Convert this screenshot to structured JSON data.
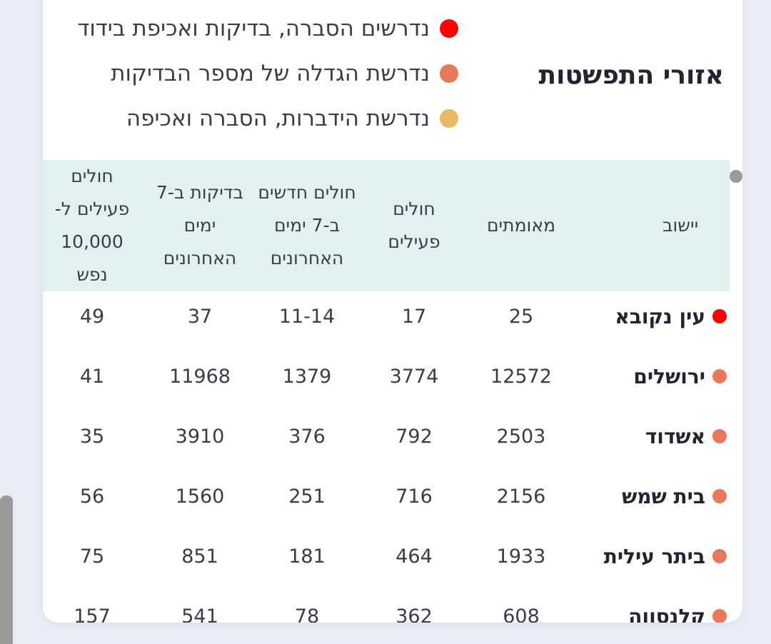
{
  "title": "אזורי התפשטות",
  "legend": [
    {
      "label": "נדרשים הסברה, בדיקות ואכיפת בידוד",
      "color": "#ff0000"
    },
    {
      "label": "נדרשת הגדלה של מספר הבדיקות",
      "color": "#e8785a"
    },
    {
      "label": "נדרשת הידברות, הסברה ואכיפה",
      "color": "#e8b865"
    }
  ],
  "columns": {
    "town": "יישוב",
    "confirmed": "מאומתים",
    "active": "חולים פעילים",
    "new7": "חולים חדשים ב-7 ימים האחרונים",
    "tests7": "בדיקות ב-7 ימים האחרונים",
    "per10k": "חולים פעילים ל- 10,000 נפש"
  },
  "rows": [
    {
      "town": "עין נקובא",
      "confirmed": "25",
      "active": "17",
      "new7": "11-14",
      "tests7": "37",
      "per10k": "49",
      "color": "#ff0000"
    },
    {
      "town": "ירושלים",
      "confirmed": "12572",
      "active": "3774",
      "new7": "1379",
      "tests7": "11968",
      "per10k": "41",
      "color": "#e8785a"
    },
    {
      "town": "אשדוד",
      "confirmed": "2503",
      "active": "792",
      "new7": "376",
      "tests7": "3910",
      "per10k": "35",
      "color": "#e8785a"
    },
    {
      "town": "בית שמש",
      "confirmed": "2156",
      "active": "716",
      "new7": "251",
      "tests7": "1560",
      "per10k": "56",
      "color": "#e8785a"
    },
    {
      "town": "ביתר עילית",
      "confirmed": "1933",
      "active": "464",
      "new7": "181",
      "tests7": "851",
      "per10k": "75",
      "color": "#e8785a"
    },
    {
      "town": "קלנסווה",
      "confirmed": "608",
      "active": "362",
      "new7": "78",
      "tests7": "541",
      "per10k": "157",
      "color": "#e8785a"
    }
  ]
}
